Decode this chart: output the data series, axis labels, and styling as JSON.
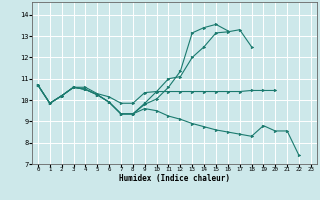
{
  "xlabel": "Humidex (Indice chaleur)",
  "xlim": [
    -0.5,
    23.5
  ],
  "ylim": [
    7,
    14.6
  ],
  "yticks": [
    7,
    8,
    9,
    10,
    11,
    12,
    13,
    14
  ],
  "xticks": [
    0,
    1,
    2,
    3,
    4,
    5,
    6,
    7,
    8,
    9,
    10,
    11,
    12,
    13,
    14,
    15,
    16,
    17,
    18,
    19,
    20,
    21,
    22,
    23
  ],
  "background_color": "#cde8ea",
  "grid_color": "#ffffff",
  "line_color": "#1a7a6e",
  "lines": [
    [
      10.7,
      9.85,
      10.2,
      10.6,
      10.5,
      10.25,
      9.9,
      9.35,
      9.35,
      9.85,
      10.4,
      11.0,
      11.1,
      12.0,
      12.5,
      13.15,
      13.2,
      13.3,
      12.5,
      null,
      null,
      null,
      null,
      null
    ],
    [
      10.7,
      9.85,
      10.2,
      10.6,
      10.6,
      10.3,
      10.15,
      9.85,
      9.85,
      10.35,
      10.4,
      10.4,
      10.4,
      10.4,
      10.4,
      10.4,
      10.4,
      10.4,
      10.45,
      10.45,
      10.45,
      null,
      null,
      null
    ],
    [
      10.7,
      9.85,
      10.2,
      10.6,
      10.5,
      10.25,
      9.9,
      9.35,
      9.35,
      9.8,
      10.05,
      10.6,
      11.35,
      13.15,
      13.4,
      13.55,
      13.25,
      null,
      null,
      null,
      null,
      null,
      null,
      null
    ],
    [
      10.7,
      9.85,
      10.2,
      10.6,
      10.5,
      10.25,
      9.9,
      9.35,
      9.35,
      9.6,
      9.5,
      9.25,
      9.1,
      8.9,
      8.75,
      8.6,
      8.5,
      8.4,
      8.3,
      8.8,
      8.55,
      8.55,
      7.4,
      null
    ]
  ]
}
